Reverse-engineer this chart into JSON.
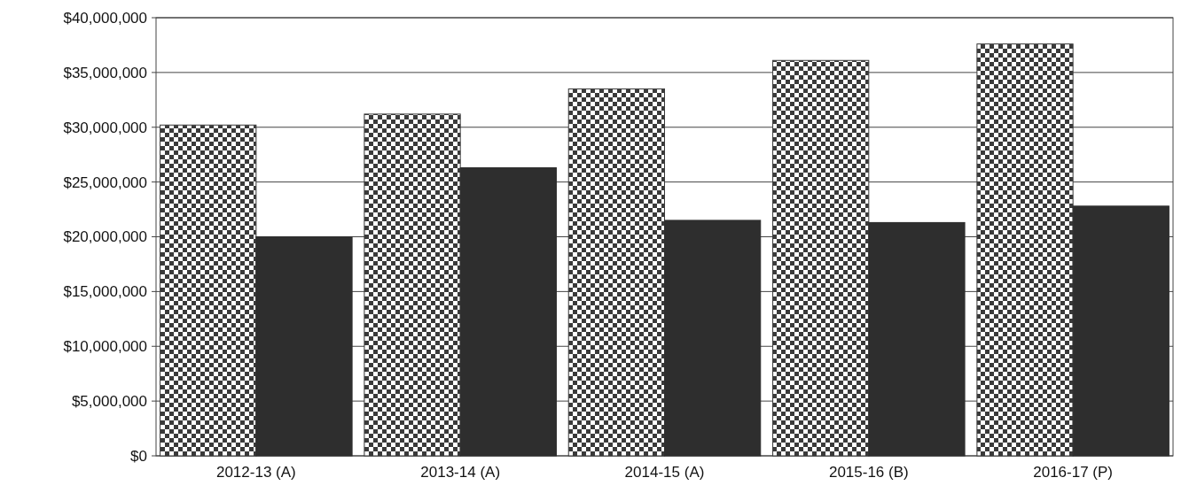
{
  "chart_data": {
    "type": "bar",
    "categories": [
      "2012-13 (A)",
      "2013-14 (A)",
      "2014-15 (A)",
      "2015-16 (B)",
      "2016-17 (P)"
    ],
    "series": [
      {
        "color": "#3a3a3a",
        "values": [
          30200000,
          31200000,
          33500000,
          36100000,
          37600000
        ]
      },
      {
        "color": "#2e2e2e",
        "values": [
          20000000,
          26300000,
          21500000,
          21300000,
          22800000
        ]
      }
    ],
    "ylim": [
      0,
      40000000
    ],
    "yticks": [
      {
        "value": 0,
        "label": "$0"
      },
      {
        "value": 5000000,
        "label": "$5,000,000"
      },
      {
        "value": 10000000,
        "label": "$10,000,000"
      },
      {
        "value": 15000000,
        "label": "$15,000,000"
      },
      {
        "value": 20000000,
        "label": "$20,000,000"
      },
      {
        "value": 25000000,
        "label": "$25,000,000"
      },
      {
        "value": 30000000,
        "label": "$30,000,000"
      },
      {
        "value": 35000000,
        "label": "$35,000,000"
      },
      {
        "value": 40000000,
        "label": "$40,000,000"
      }
    ],
    "grid": "y"
  }
}
